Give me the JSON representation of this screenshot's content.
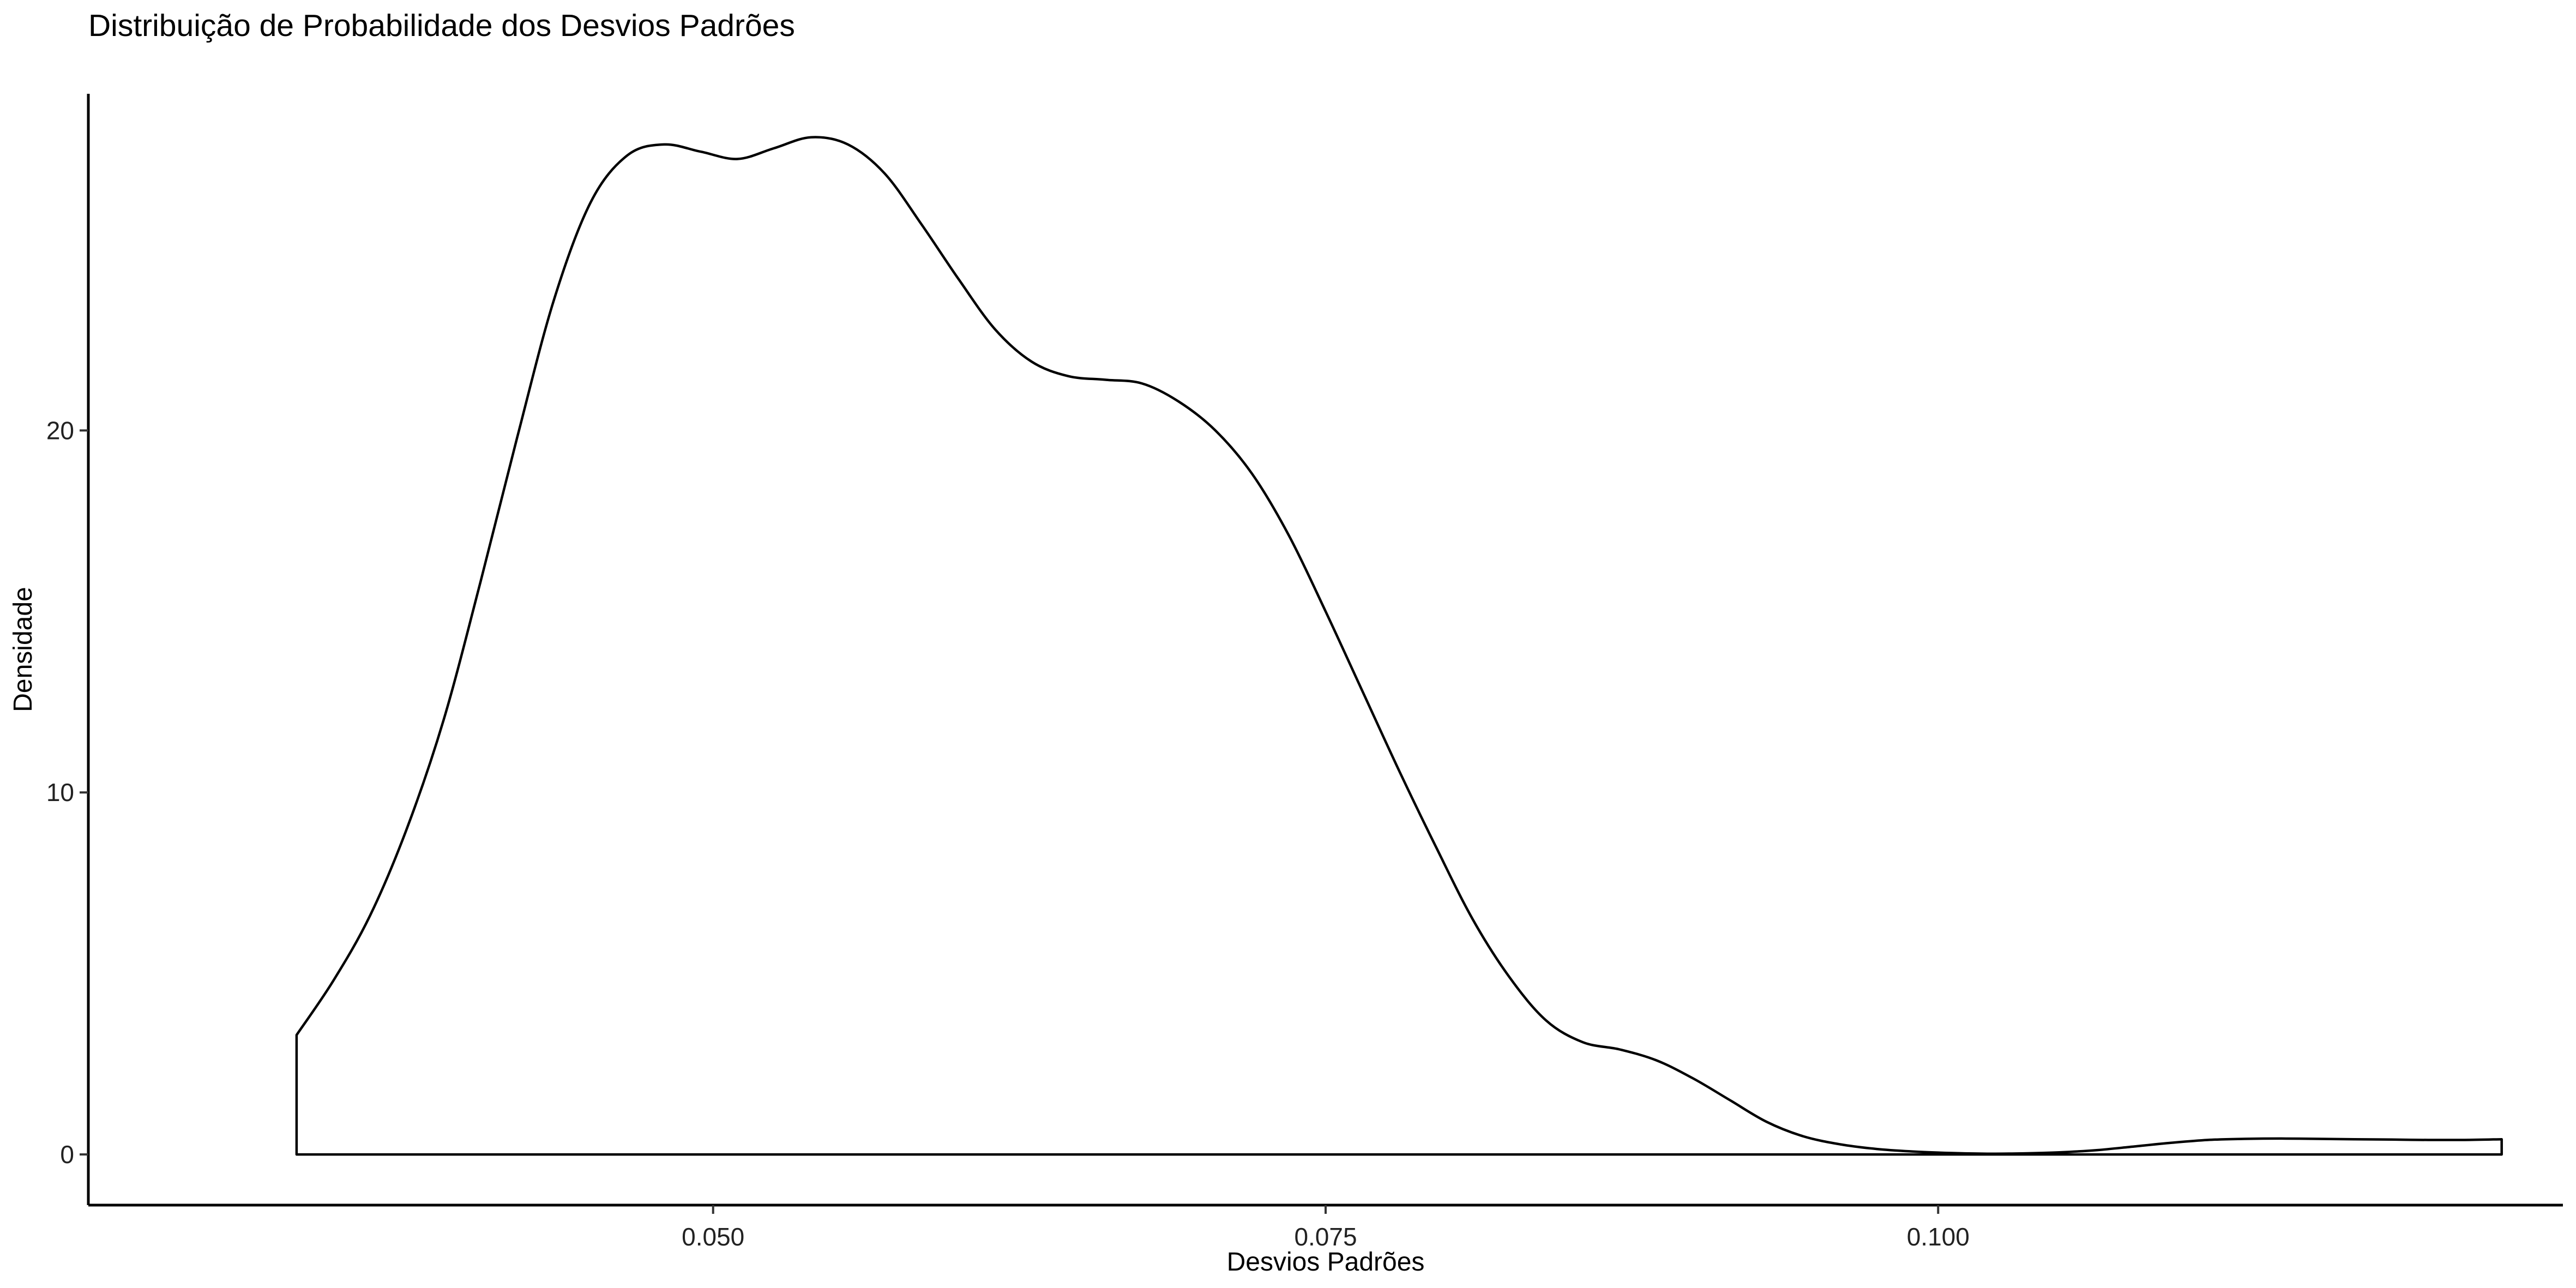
{
  "chart_data": {
    "type": "area",
    "title": "Distribuição de Probabilidade dos Desvios Padrões",
    "xlabel": "Desvios Padrões",
    "ylabel": "Densidade",
    "xlim": [
      0.0245,
      0.1255
    ],
    "ylim": [
      -1.4,
      29.3
    ],
    "xticks": [
      {
        "value": 0.05,
        "label": "0.050"
      },
      {
        "value": 0.075,
        "label": "0.075"
      },
      {
        "value": 0.1,
        "label": "0.100"
      }
    ],
    "yticks": [
      {
        "value": 0,
        "label": "0"
      },
      {
        "value": 10,
        "label": "10"
      },
      {
        "value": 20,
        "label": "20"
      }
    ],
    "grid": false,
    "fill": "none",
    "line_color": "#000000",
    "series": [
      {
        "x": [
          0.033,
          0.0345,
          0.036,
          0.0375,
          0.039,
          0.0405,
          0.042,
          0.0435,
          0.045,
          0.0465,
          0.048,
          0.0495,
          0.051,
          0.0525,
          0.054,
          0.0555,
          0.057,
          0.0585,
          0.06,
          0.0615,
          0.063,
          0.0645,
          0.066,
          0.0675,
          0.069,
          0.0705,
          0.072,
          0.0735,
          0.075,
          0.0765,
          0.078,
          0.0795,
          0.081,
          0.0825,
          0.084,
          0.0855,
          0.087,
          0.0885,
          0.09,
          0.0915,
          0.093,
          0.0945,
          0.096,
          0.0975,
          0.099,
          0.1005,
          0.102,
          0.1035,
          0.105,
          0.1065,
          0.108,
          0.1095,
          0.111,
          0.1125,
          0.114,
          0.1155,
          0.117,
          0.1185,
          0.12,
          0.1215,
          0.123
        ],
        "y": [
          3.3,
          4.8,
          6.6,
          9.0,
          12.0,
          15.8,
          19.8,
          23.6,
          26.3,
          27.6,
          27.9,
          27.7,
          27.5,
          27.8,
          28.1,
          27.9,
          27.1,
          25.7,
          24.2,
          22.8,
          21.9,
          21.5,
          21.4,
          21.3,
          20.8,
          20.0,
          18.8,
          17.1,
          15.0,
          12.8,
          10.6,
          8.5,
          6.5,
          4.9,
          3.7,
          3.1,
          2.9,
          2.6,
          2.1,
          1.5,
          0.9,
          0.5,
          0.28,
          0.15,
          0.08,
          0.04,
          0.02,
          0.03,
          0.06,
          0.12,
          0.22,
          0.32,
          0.4,
          0.43,
          0.44,
          0.43,
          0.42,
          0.41,
          0.4,
          0.4,
          0.42
        ]
      }
    ]
  }
}
